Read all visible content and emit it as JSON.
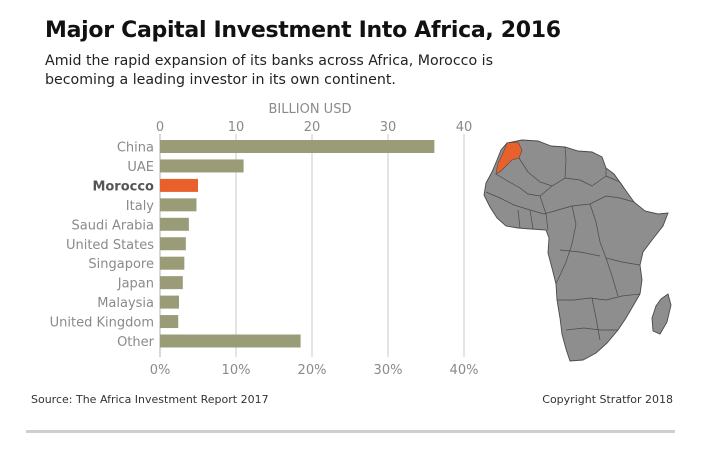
{
  "header": {
    "title": "Major Capital Investment Into Africa, 2016",
    "subtitle": "Amid the rapid expansion of its banks across Africa, Morocco is becoming a leading investor in its own continent."
  },
  "footer": {
    "source": "Source: The Africa Investment Report 2017",
    "copyright": "Copyright Stratfor 2018"
  },
  "colors": {
    "bar": "#9a9c78",
    "highlight": "#e8612c",
    "map_fill": "#8e8e8e",
    "map_stroke": "#4a4a4a",
    "grid": "#bdbdbd",
    "axis_text": "#8a8a8a",
    "category_text": "#8a8a8a"
  },
  "chart_data": {
    "type": "bar",
    "orientation": "horizontal",
    "top_axis_label": "BILLION USD",
    "top_ticks": [
      "0",
      "10",
      "20",
      "30",
      "40"
    ],
    "bottom_ticks": [
      "0%",
      "10%",
      "20%",
      "30%",
      "40%"
    ],
    "xlim": [
      0,
      40
    ],
    "grid": true,
    "categories": [
      "China",
      "UAE",
      "Morocco",
      "Italy",
      "Saudi Arabia",
      "United States",
      "Singapore",
      "Japan",
      "Malaysia",
      "United Kingdom",
      "Other"
    ],
    "values": [
      36.1,
      11.0,
      5.0,
      4.8,
      3.8,
      3.4,
      3.2,
      3.0,
      2.5,
      2.4,
      18.5
    ],
    "highlight_category": "Morocco"
  },
  "map": {
    "subject": "africa-map",
    "highlighted_country": "Morocco"
  }
}
